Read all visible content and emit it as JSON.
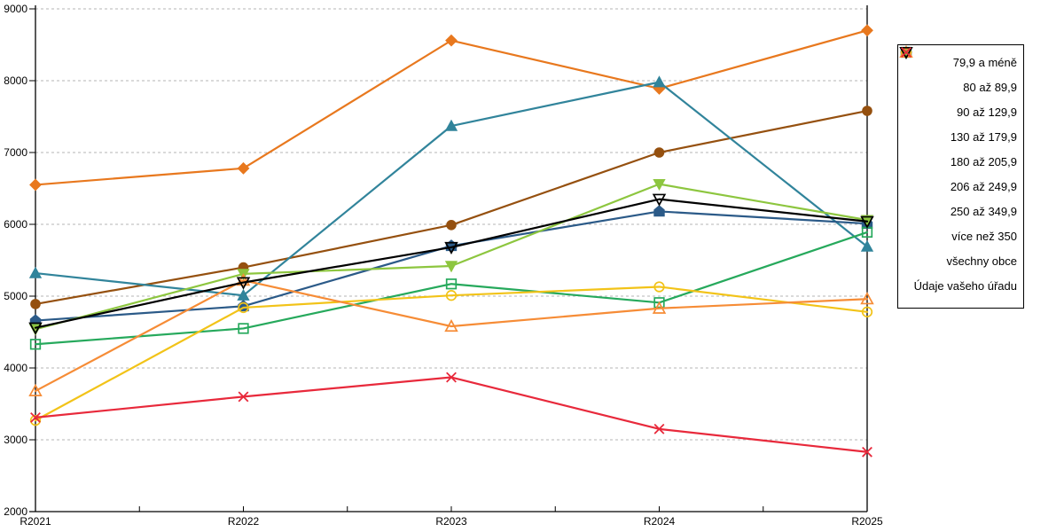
{
  "chart_data": {
    "type": "line",
    "title": "",
    "xlabel": "",
    "ylabel": "",
    "categories": [
      "R2021",
      "R2022",
      "R2023",
      "R2024",
      "R2025"
    ],
    "y_ticks": [
      2000,
      3000,
      4000,
      5000,
      6000,
      7000,
      8000,
      9000
    ],
    "ylim": [
      2000,
      9000
    ],
    "grid": "horizontal-dashed",
    "gridline_color": "#b5b5b5",
    "axis_color": "#000000",
    "legend_position": "right",
    "series": [
      {
        "name": "79,9 a méně",
        "color": "#E8781E",
        "marker": "diamond",
        "fill": "filled",
        "values": [
          6550,
          6780,
          8560,
          7890,
          8700
        ]
      },
      {
        "name": "80 až 89,9",
        "color": "#95500F",
        "marker": "circle",
        "fill": "filled",
        "values": [
          4890,
          5400,
          5990,
          7000,
          7580
        ]
      },
      {
        "name": "90 až 129,9",
        "color": "#31849B",
        "marker": "triangle-up",
        "fill": "filled",
        "values": [
          5320,
          5010,
          7370,
          7980,
          5690
        ]
      },
      {
        "name": "130 až 179,9",
        "color": "#2B5A88",
        "marker": "pentagon",
        "fill": "filled",
        "values": [
          4660,
          4860,
          5700,
          6180,
          6010
        ]
      },
      {
        "name": "180 až 205,9",
        "color": "#8DC63F",
        "marker": "triangle-down",
        "fill": "filled",
        "values": [
          4540,
          5310,
          5420,
          6560,
          6060
        ]
      },
      {
        "name": "206 až 249,9",
        "color": "#26A95C",
        "marker": "square",
        "fill": "hollow",
        "values": [
          4330,
          4550,
          5170,
          4910,
          5890
        ]
      },
      {
        "name": "250 až 349,9",
        "color": "#F2C318",
        "marker": "circle",
        "fill": "hollow",
        "values": [
          3270,
          4840,
          5010,
          5130,
          4780
        ]
      },
      {
        "name": "více než 350",
        "color": "#F68C36",
        "marker": "triangle-up",
        "fill": "hollow",
        "values": [
          3680,
          5220,
          4580,
          4830,
          4960
        ]
      },
      {
        "name": "všechny obce",
        "color": "#000000",
        "marker": "triangle-down",
        "fill": "hollow",
        "values": [
          4560,
          5190,
          5680,
          6350,
          6040
        ]
      },
      {
        "name": "Údaje vašeho úřadu",
        "color": "#E8293B",
        "marker": "x",
        "fill": "hollow",
        "values": [
          3310,
          3600,
          3870,
          3150,
          2830
        ]
      }
    ]
  }
}
